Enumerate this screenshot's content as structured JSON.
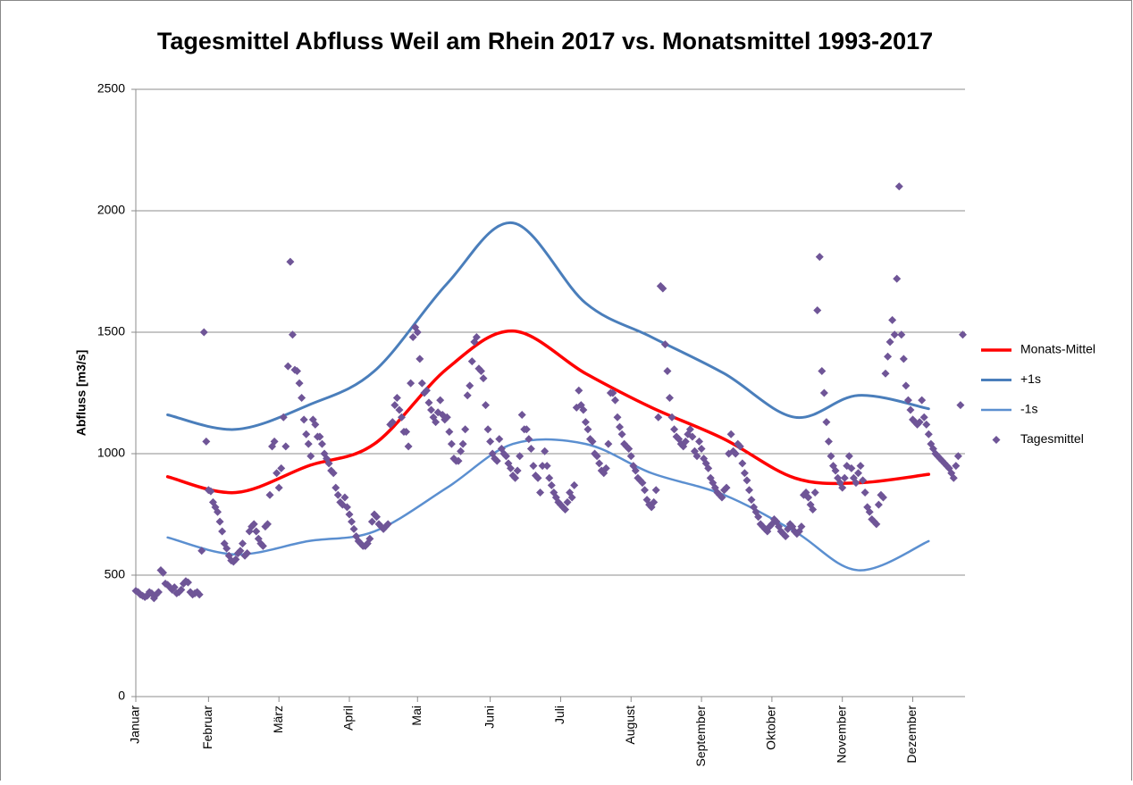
{
  "chart_data": {
    "type": "combo",
    "title": "Tagesmittel Abfluss Weil am Rhein 2017 vs. Monatsmittel 1993-2017",
    "y_label": "Abfluss [m3/s]",
    "xlim": [
      0,
      365
    ],
    "ylim": [
      0,
      2500
    ],
    "yticks": [
      0,
      500,
      1000,
      1500,
      2000,
      2500
    ],
    "xticks": [
      {
        "value": 0,
        "label": "Januar"
      },
      {
        "value": 32,
        "label": "Februar"
      },
      {
        "value": 63,
        "label": "März"
      },
      {
        "value": 94,
        "label": "April"
      },
      {
        "value": 124,
        "label": "Mai"
      },
      {
        "value": 156,
        "label": "Juni"
      },
      {
        "value": 187,
        "label": "Juli"
      },
      {
        "value": 218,
        "label": "August"
      },
      {
        "value": 249,
        "label": "September"
      },
      {
        "value": 280,
        "label": "Oktober"
      },
      {
        "value": 311,
        "label": "November"
      },
      {
        "value": 342,
        "label": "Dezember"
      }
    ],
    "grid": true,
    "legend": "right",
    "series": [
      {
        "name": "Monats-Mittel",
        "type": "line",
        "color": "#ff0000",
        "width": 3.5,
        "x": [
          14,
          44,
          76,
          105,
          137,
          166,
          198,
          227,
          259,
          290,
          318,
          349
        ],
        "values": [
          905,
          840,
          950,
          1040,
          1350,
          1505,
          1330,
          1190,
          1060,
          900,
          880,
          915
        ]
      },
      {
        "name": "+1s",
        "type": "line",
        "color": "#4a7ebb",
        "width": 3,
        "x": [
          14,
          44,
          76,
          105,
          137,
          166,
          198,
          227,
          259,
          290,
          318,
          349
        ],
        "values": [
          1160,
          1100,
          1200,
          1340,
          1700,
          1950,
          1620,
          1480,
          1330,
          1150,
          1240,
          1185
        ]
      },
      {
        "name": "-1s",
        "type": "line",
        "color": "#5b8fd0",
        "width": 2.5,
        "x": [
          14,
          44,
          76,
          105,
          137,
          166,
          198,
          227,
          259,
          290,
          318,
          349
        ],
        "values": [
          655,
          585,
          640,
          680,
          860,
          1040,
          1040,
          920,
          830,
          680,
          520,
          640
        ]
      },
      {
        "name": "Tagesmittel",
        "type": "scatter",
        "color": "#6f5597",
        "x": [
          0,
          1,
          2,
          3,
          4,
          5,
          6,
          7,
          8,
          9,
          10,
          11,
          12,
          13,
          14,
          15,
          16,
          17,
          18,
          19,
          20,
          21,
          22,
          23,
          24,
          25,
          26,
          27,
          28,
          29,
          30,
          31,
          32,
          33,
          34,
          35,
          36,
          37,
          38,
          39,
          40,
          41,
          42,
          43,
          44,
          45,
          46,
          47,
          48,
          49,
          50,
          51,
          52,
          53,
          54,
          55,
          56,
          57,
          58,
          59,
          60,
          61,
          62,
          63,
          64,
          65,
          66,
          67,
          68,
          69,
          70,
          71,
          72,
          73,
          74,
          75,
          76,
          77,
          78,
          79,
          80,
          81,
          82,
          83,
          84,
          85,
          86,
          87,
          88,
          89,
          90,
          91,
          92,
          93,
          94,
          95,
          96,
          97,
          98,
          99,
          100,
          101,
          102,
          103,
          104,
          105,
          106,
          107,
          108,
          109,
          110,
          111,
          112,
          113,
          114,
          115,
          116,
          117,
          118,
          119,
          120,
          121,
          122,
          123,
          124,
          125,
          126,
          127,
          128,
          129,
          130,
          131,
          132,
          133,
          134,
          135,
          136,
          137,
          138,
          139,
          140,
          141,
          142,
          143,
          144,
          145,
          146,
          147,
          148,
          149,
          150,
          151,
          152,
          153,
          154,
          155,
          156,
          157,
          158,
          159,
          160,
          161,
          162,
          163,
          164,
          165,
          166,
          167,
          168,
          169,
          170,
          171,
          172,
          173,
          174,
          175,
          176,
          177,
          178,
          179,
          180,
          181,
          182,
          183,
          184,
          185,
          186,
          187,
          188,
          189,
          190,
          191,
          192,
          193,
          194,
          195,
          196,
          197,
          198,
          199,
          200,
          201,
          202,
          203,
          204,
          205,
          206,
          207,
          208,
          209,
          210,
          211,
          212,
          213,
          214,
          215,
          216,
          217,
          218,
          219,
          220,
          221,
          222,
          223,
          224,
          225,
          226,
          227,
          228,
          229,
          230,
          231,
          232,
          233,
          234,
          235,
          236,
          237,
          238,
          239,
          240,
          241,
          242,
          243,
          244,
          245,
          246,
          247,
          248,
          249,
          250,
          251,
          252,
          253,
          254,
          255,
          256,
          257,
          258,
          259,
          260,
          261,
          262,
          263,
          264,
          265,
          266,
          267,
          268,
          269,
          270,
          271,
          272,
          273,
          274,
          275,
          276,
          277,
          278,
          279,
          280,
          281,
          282,
          283,
          284,
          285,
          286,
          287,
          288,
          289,
          290,
          291,
          292,
          293,
          294,
          295,
          296,
          297,
          298,
          299,
          300,
          301,
          302,
          303,
          304,
          305,
          306,
          307,
          308,
          309,
          310,
          311,
          312,
          313,
          314,
          315,
          316,
          317,
          318,
          319,
          320,
          321,
          322,
          323,
          324,
          325,
          326,
          327,
          328,
          329,
          330,
          331,
          332,
          333,
          334,
          335,
          336,
          337,
          338,
          339,
          340,
          341,
          342,
          343,
          344,
          345,
          346,
          347,
          348,
          349,
          350,
          351,
          352,
          353,
          354,
          355,
          356,
          357,
          358,
          359,
          360,
          361,
          362,
          363,
          364
        ],
        "values": [
          435,
          430,
          420,
          415,
          410,
          415,
          430,
          425,
          405,
          420,
          430,
          520,
          510,
          465,
          460,
          450,
          440,
          450,
          425,
          430,
          440,
          465,
          475,
          470,
          430,
          420,
          425,
          430,
          420,
          600,
          1500,
          1050,
          850,
          845,
          800,
          780,
          760,
          720,
          680,
          630,
          610,
          580,
          560,
          555,
          565,
          590,
          600,
          630,
          580,
          590,
          680,
          700,
          710,
          680,
          650,
          630,
          620,
          700,
          710,
          830,
          1030,
          1050,
          920,
          860,
          940,
          1150,
          1030,
          1360,
          1790,
          1490,
          1345,
          1340,
          1290,
          1230,
          1140,
          1080,
          1040,
          990,
          1140,
          1120,
          1070,
          1070,
          1040,
          1000,
          980,
          960,
          930,
          920,
          860,
          830,
          800,
          790,
          820,
          780,
          750,
          720,
          690,
          660,
          640,
          630,
          620,
          620,
          630,
          650,
          720,
          750,
          740,
          710,
          700,
          690,
          700,
          710,
          1120,
          1130,
          1200,
          1230,
          1180,
          1150,
          1090,
          1090,
          1030,
          1290,
          1480,
          1520,
          1500,
          1390,
          1290,
          1250,
          1260,
          1210,
          1180,
          1150,
          1130,
          1170,
          1220,
          1160,
          1140,
          1150,
          1090,
          1040,
          980,
          970,
          970,
          1010,
          1040,
          1100,
          1240,
          1280,
          1380,
          1460,
          1480,
          1350,
          1340,
          1310,
          1200,
          1100,
          1050,
          1000,
          980,
          970,
          1060,
          1020,
          1000,
          990,
          960,
          940,
          910,
          900,
          930,
          990,
          1160,
          1100,
          1100,
          1060,
          1020,
          950,
          910,
          900,
          840,
          950,
          1010,
          950,
          900,
          870,
          840,
          820,
          800,
          790,
          780,
          770,
          800,
          840,
          820,
          870,
          1190,
          1260,
          1200,
          1180,
          1130,
          1100,
          1060,
          1050,
          1000,
          990,
          960,
          930,
          920,
          940,
          1040,
          1250,
          1250,
          1220,
          1150,
          1110,
          1080,
          1040,
          1030,
          1020,
          990,
          950,
          930,
          900,
          890,
          880,
          850,
          810,
          790,
          780,
          800,
          850,
          1150,
          1690,
          1680,
          1450,
          1340,
          1230,
          1150,
          1100,
          1070,
          1060,
          1040,
          1030,
          1050,
          1080,
          1100,
          1070,
          1010,
          990,
          1050,
          1020,
          980,
          960,
          940,
          900,
          880,
          860,
          840,
          830,
          820,
          850,
          860,
          1000,
          1080,
          1010,
          1000,
          1040,
          1030,
          960,
          920,
          890,
          850,
          810,
          780,
          760,
          740,
          710,
          700,
          690,
          680,
          700,
          710,
          730,
          720,
          700,
          680,
          670,
          660,
          690,
          710,
          700,
          680,
          670,
          680,
          700,
          830,
          840,
          820,
          790,
          770,
          840,
          1590,
          1810,
          1340,
          1250,
          1130,
          1050,
          990,
          950,
          930,
          900,
          880,
          860,
          900,
          950,
          990,
          940,
          900,
          880,
          920,
          950,
          890,
          840,
          780,
          760,
          730,
          720,
          710,
          790,
          830,
          820,
          1330,
          1400,
          1460,
          1550,
          1490,
          1720,
          2100,
          1490,
          1390,
          1280,
          1220,
          1180,
          1140,
          1130,
          1120,
          1130,
          1220,
          1150,
          1120,
          1080,
          1040,
          1020,
          1000,
          990,
          980,
          970,
          960,
          950,
          940,
          920,
          900,
          950,
          990,
          1200,
          1490
        ]
      }
    ]
  }
}
